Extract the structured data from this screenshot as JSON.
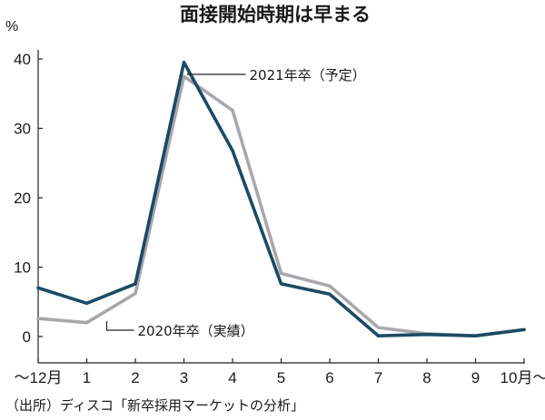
{
  "chart_data": {
    "type": "line",
    "title": "面接開始時期は早まる",
    "ylabel": "%",
    "ylim": [
      0,
      40
    ],
    "y_ticks": [
      "0",
      "10",
      "20",
      "30",
      "40"
    ],
    "categories": [
      "～12月",
      "1",
      "2",
      "3",
      "4",
      "5",
      "6",
      "7",
      "8",
      "9",
      "10月～"
    ],
    "series": [
      {
        "name": "2021年卒（予定）",
        "color": "#1b4a63",
        "values": [
          7.0,
          4.8,
          7.6,
          39.5,
          26.8,
          7.6,
          6.1,
          0.1,
          0.3,
          0.1,
          1.0
        ]
      },
      {
        "name": "2020年卒（実績）",
        "color": "#a9a7ac",
        "values": [
          2.6,
          2.0,
          6.2,
          37.5,
          32.6,
          9.1,
          7.3,
          1.3,
          0.4,
          0.1,
          1.0
        ]
      }
    ],
    "source": "（出所）ディスコ「新卒採用マーケットの分析」",
    "grid": false,
    "legend": "inline-annotations"
  }
}
